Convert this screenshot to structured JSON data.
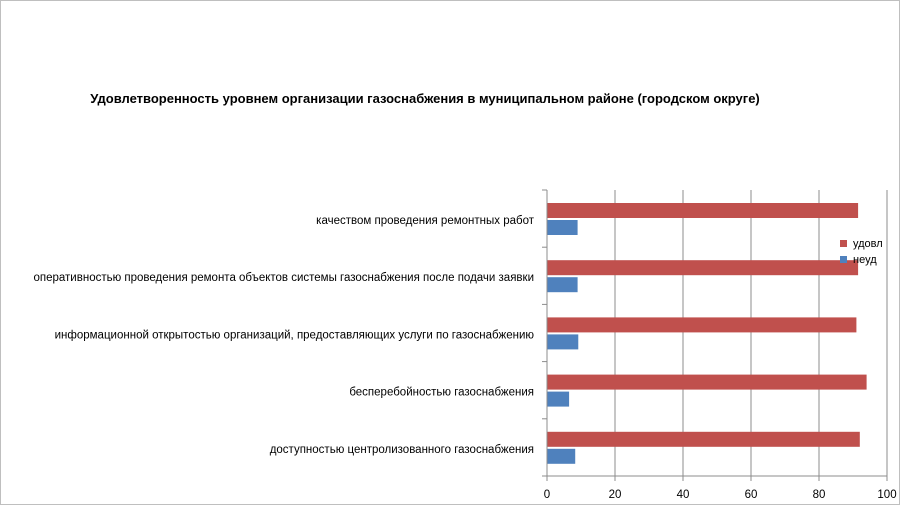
{
  "chart_data": {
    "type": "bar",
    "orientation": "horizontal",
    "title": "Удовлетворенность уровнем организации газоснабжения в муниципальном районе (городском округе)",
    "categories": [
      "качеством проведения ремонтных работ",
      "оперативностью проведения ремонта объектов системы газоснабжения после подачи заявки",
      "информационной открытостью организаций, предоставляющих услуги по газоснабжению",
      "бесперебойностью газоснабжения",
      "доступностью центролизованного газоснабжения"
    ],
    "series": [
      {
        "name": "удовл",
        "color": "#c0504d",
        "values": [
          91.5,
          91.5,
          91,
          94,
          92
        ]
      },
      {
        "name": "неуд",
        "color": "#4f81bd",
        "values": [
          9,
          9,
          9.2,
          6.5,
          8.3
        ]
      }
    ],
    "xlim": [
      0,
      100
    ],
    "xticks": [
      0,
      20,
      40,
      60,
      80,
      100
    ],
    "grid": true,
    "legend": "right"
  }
}
